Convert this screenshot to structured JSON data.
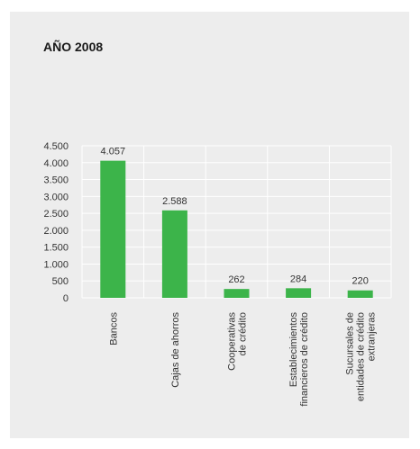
{
  "chart_data": {
    "type": "bar",
    "title": "AÑO 2008",
    "categories": [
      [
        "Bancos"
      ],
      [
        "Cajas de ahorros"
      ],
      [
        "Cooperativas",
        "de crédito"
      ],
      [
        "Establecimientos",
        "financieros de crédito"
      ],
      [
        "Sucursales de",
        "entidades de crédito",
        "extranjeras"
      ]
    ],
    "values": [
      4057,
      2588,
      262,
      284,
      220
    ],
    "data_labels": [
      "4.057",
      "2.588",
      "262",
      "284",
      "220"
    ],
    "yticks": [
      0,
      500,
      1000,
      1500,
      2000,
      2500,
      3000,
      3500,
      4000,
      4500
    ],
    "ytick_labels": [
      "0",
      "500",
      "1.000",
      "1.500",
      "2.000",
      "2.500",
      "3.000",
      "3.500",
      "4.000",
      "4.500"
    ],
    "ylim": [
      0,
      4500
    ],
    "bar_color": "#3cb44a",
    "grid_color": "#ffffff",
    "grid": true
  }
}
